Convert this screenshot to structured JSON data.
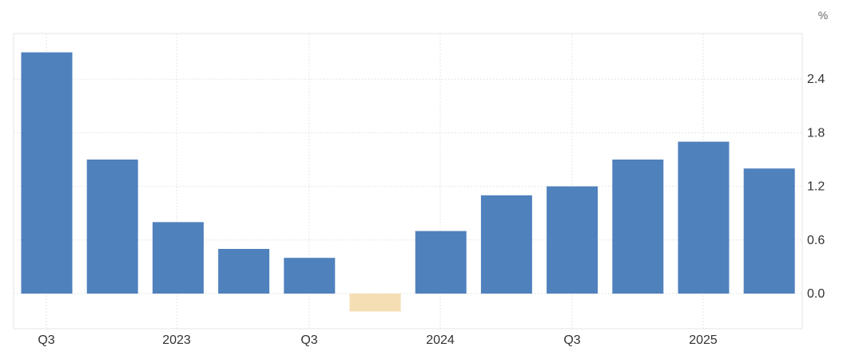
{
  "chart_data": {
    "type": "bar",
    "unit": "%",
    "x_tick_labels": [
      "Q3",
      "2023",
      "Q3",
      "2024",
      "Q3",
      "2025"
    ],
    "values": [
      2.7,
      1.5,
      0.8,
      0.5,
      0.4,
      -0.2,
      0.7,
      1.1,
      1.2,
      1.5,
      1.7,
      1.4
    ],
    "y_ticks": [
      "0.0",
      "0.6",
      "1.2",
      "1.8",
      "2.4"
    ],
    "ylim": [
      -0.4,
      2.9
    ],
    "grid": true,
    "y_axis_position": "right",
    "colors": {
      "positive": "#4f81bd",
      "negative": "#f5deb3",
      "grid": "#e6e6e6",
      "axis": "#cccccc"
    }
  }
}
